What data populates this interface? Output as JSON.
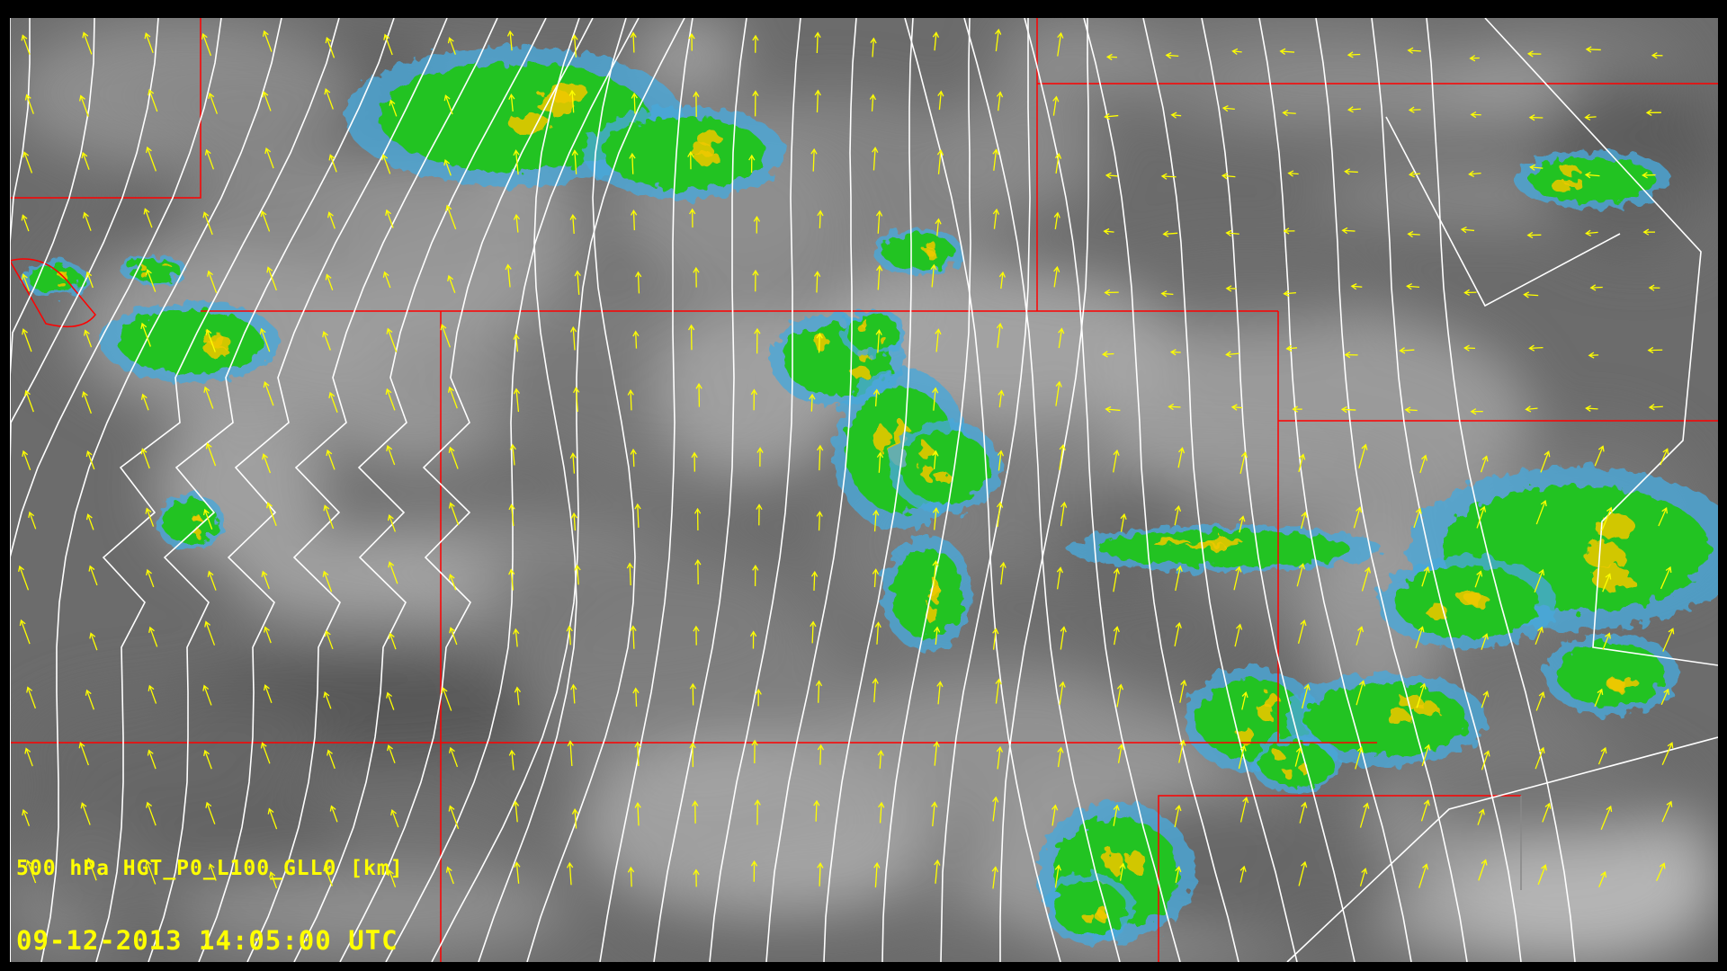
{
  "overlay": {
    "field_label": "500 hPa HGT_P0_L100_GLL0 [km]",
    "timestamp": "09-12-2013 14:05:00 UTC"
  },
  "colors": {
    "contour": "#ffffff",
    "wind_vector": "#ffff00",
    "boundary": "#ff0000",
    "radar_light": "#22c322",
    "radar_moderate": "#f0c800",
    "radar_weak": "#4aa8d8",
    "satellite_background": "#6e6e6e"
  },
  "layers": [
    "infrared satellite imagery",
    "radar reflectivity",
    "500 hPa height contours",
    "wind vectors",
    "state boundaries"
  ]
}
